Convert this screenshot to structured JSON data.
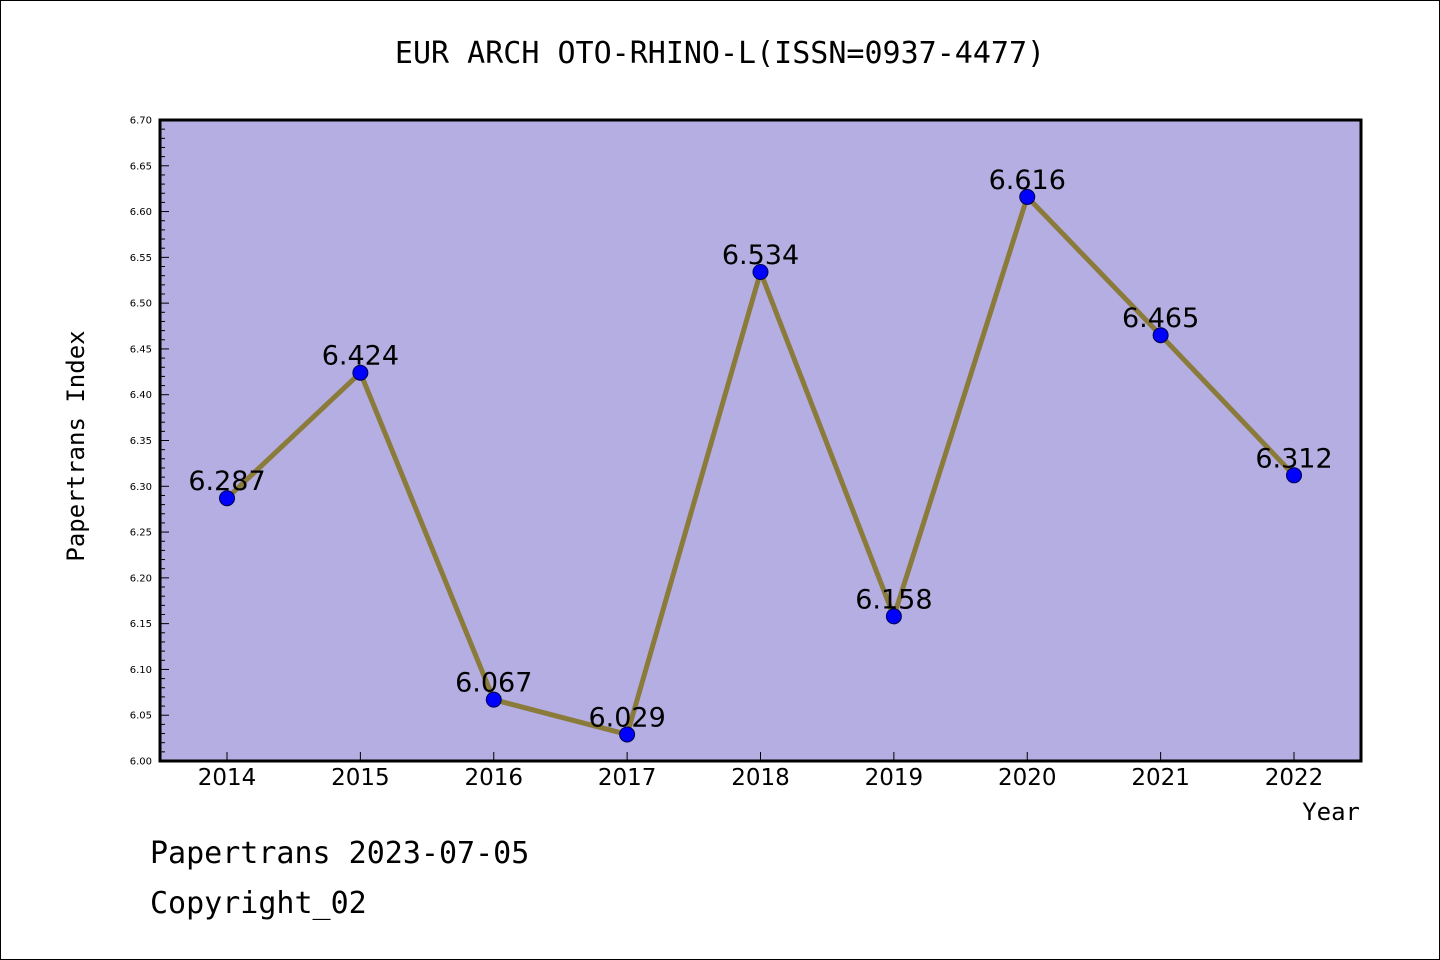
{
  "chart_data": {
    "type": "line",
    "title": "EUR ARCH OTO-RHINO-L(ISSN=0937-4477)",
    "xlabel": "Year",
    "ylabel": "Papertrans Index",
    "categories": [
      "2014",
      "2015",
      "2016",
      "2017",
      "2018",
      "2019",
      "2020",
      "2021",
      "2022"
    ],
    "series": [
      {
        "values": [
          6.287,
          6.424,
          6.067,
          6.029,
          6.534,
          6.158,
          6.616,
          6.465,
          6.312
        ]
      }
    ],
    "data_labels": [
      "6.287",
      "6.424",
      "6.067",
      "6.029",
      "6.534",
      "6.158",
      "6.616",
      "6.465",
      "6.312"
    ],
    "ylim": [
      6.0,
      6.7
    ],
    "yticks": [
      "6.00",
      "6.05",
      "6.10",
      "6.15",
      "6.20",
      "6.25",
      "6.30",
      "6.35",
      "6.40",
      "6.45",
      "6.50",
      "6.55",
      "6.60",
      "6.65",
      "6.70"
    ],
    "grid": false,
    "legend": "none",
    "colors": {
      "plot_background": "#b4aee2",
      "line": "#8b7b3b",
      "marker": "#0000ff"
    }
  },
  "footer": {
    "line1": "Papertrans 2023-07-05",
    "line2": "Copyright_02"
  }
}
